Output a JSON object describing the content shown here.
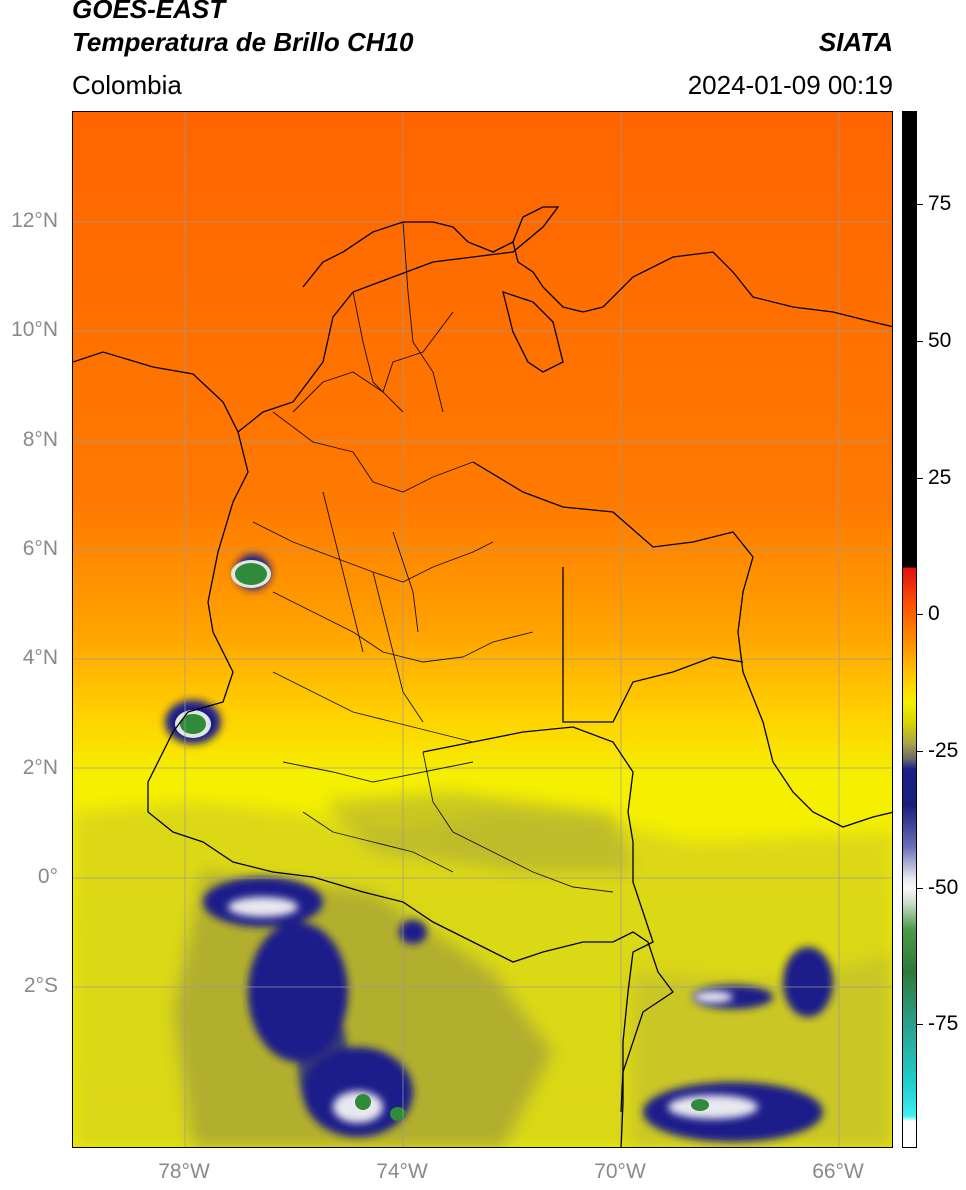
{
  "header": {
    "title_line1": "GOES-EAST",
    "title_line2": "Temperatura de Brillo CH10",
    "agency": "SIATA",
    "region": "Colombia",
    "datetime": "2024-01-09 00:19"
  },
  "map": {
    "lat_labels": [
      "12°N",
      "10°N",
      "8°N",
      "6°N",
      "4°N",
      "2°N",
      "0°",
      "2°S"
    ],
    "lon_labels": [
      "78°W",
      "74°W",
      "70°W",
      "66°W"
    ],
    "colors": {
      "warm": "#ff6a00",
      "mid": "#ffa000",
      "yellow": "#f5f000",
      "olive": "#b9b62a",
      "cold": "#1a1f8a",
      "coldest": "#2f8a3a",
      "border": "#000000",
      "grid": "#9a9a9a"
    }
  },
  "colorbar": {
    "tick_labels": [
      "75",
      "50",
      "25",
      "0",
      "-25",
      "-50",
      "-75"
    ],
    "units": ""
  }
}
